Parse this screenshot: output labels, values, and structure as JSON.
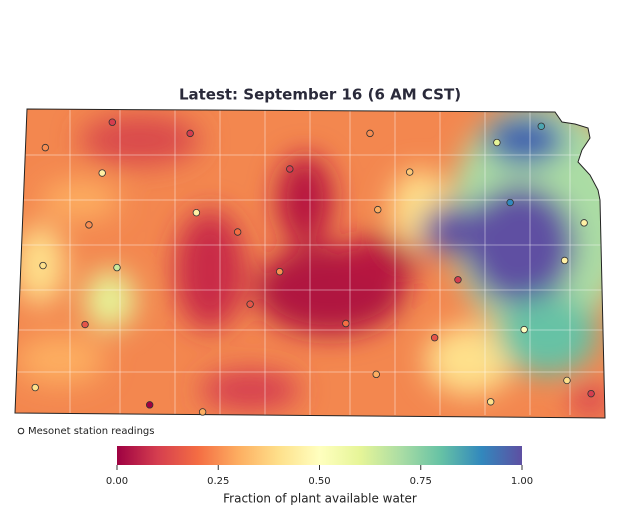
{
  "title": "Latest: September 16 (6 AM CST)",
  "legend": {
    "label": "Mesonet station readings"
  },
  "colorbar": {
    "label": "Fraction of plant available water",
    "range": [
      0,
      1
    ],
    "ticks": [
      {
        "value": 0,
        "label": "0.00"
      },
      {
        "value": 0.25,
        "label": "0.25"
      },
      {
        "value": 0.5,
        "label": "0.50"
      },
      {
        "value": 0.75,
        "label": "0.75"
      },
      {
        "value": 1,
        "label": "1.00"
      }
    ]
  },
  "stations": [
    {
      "lon": -100.89,
      "lat": 39.88,
      "value": 0.1
    },
    {
      "lon": -99.89,
      "lat": 39.77,
      "value": 0.1
    },
    {
      "lon": -97.58,
      "lat": 39.77,
      "value": 0.25
    },
    {
      "lon": -95.95,
      "lat": 39.68,
      "value": 0.6
    },
    {
      "lon": -95.38,
      "lat": 39.84,
      "value": 0.85
    },
    {
      "lon": -101.75,
      "lat": 39.63,
      "value": 0.25
    },
    {
      "lon": -101.02,
      "lat": 39.38,
      "value": 0.45
    },
    {
      "lon": -98.61,
      "lat": 39.42,
      "value": 0.1
    },
    {
      "lon": -97.07,
      "lat": 39.39,
      "value": 0.35
    },
    {
      "lon": -95.78,
      "lat": 39.09,
      "value": 0.9
    },
    {
      "lon": -99.81,
      "lat": 38.99,
      "value": 0.45
    },
    {
      "lon": -101.19,
      "lat": 38.87,
      "value": 0.25
    },
    {
      "lon": -99.28,
      "lat": 38.8,
      "value": 0.2
    },
    {
      "lon": -97.48,
      "lat": 39.02,
      "value": 0.3
    },
    {
      "lon": -94.83,
      "lat": 38.89,
      "value": 0.45
    },
    {
      "lon": -101.78,
      "lat": 38.47,
      "value": 0.4
    },
    {
      "lon": -100.83,
      "lat": 38.45,
      "value": 0.65
    },
    {
      "lon": -98.74,
      "lat": 38.41,
      "value": 0.25
    },
    {
      "lon": -96.45,
      "lat": 38.33,
      "value": 0.1
    },
    {
      "lon": -95.08,
      "lat": 38.52,
      "value": 0.45
    },
    {
      "lon": -99.12,
      "lat": 38.09,
      "value": 0.15
    },
    {
      "lon": -101.24,
      "lat": 37.89,
      "value": 0.15
    },
    {
      "lon": -97.89,
      "lat": 37.9,
      "value": 0.2
    },
    {
      "lon": -96.75,
      "lat": 37.76,
      "value": 0.15
    },
    {
      "lon": -95.6,
      "lat": 37.84,
      "value": 0.5
    },
    {
      "lon": -97.5,
      "lat": 37.4,
      "value": 0.3
    },
    {
      "lon": -101.88,
      "lat": 37.27,
      "value": 0.4
    },
    {
      "lon": -100.41,
      "lat": 37.1,
      "value": 0
    },
    {
      "lon": -99.73,
      "lat": 37.03,
      "value": 0.3
    },
    {
      "lon": -96.03,
      "lat": 37.13,
      "value": 0.4
    },
    {
      "lon": -94.74,
      "lat": 37.21,
      "value": 0.1
    },
    {
      "lon": -95.05,
      "lat": 37.34,
      "value": 0.4
    }
  ]
}
